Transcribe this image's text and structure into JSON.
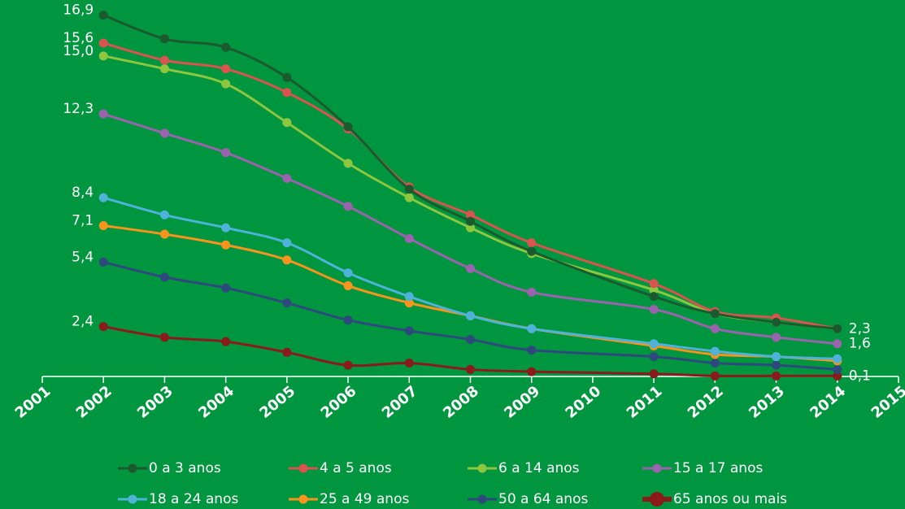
{
  "chart_data": {
    "type": "line",
    "xlim": [
      2001,
      2015
    ],
    "xticks": [
      2001,
      2002,
      2003,
      2004,
      2005,
      2006,
      2007,
      2008,
      2009,
      2010,
      2011,
      2012,
      2013,
      2014,
      2015
    ],
    "ylim": [
      0,
      17
    ],
    "x": [
      2002,
      2003,
      2004,
      2005,
      2006,
      2007,
      2008,
      2009,
      2011,
      2012,
      2013,
      2014
    ],
    "series": [
      {
        "name": "0 a 3 anos",
        "color": "#1b5a2f",
        "values": [
          16.9,
          15.8,
          15.4,
          14.0,
          11.7,
          8.8,
          7.3,
          5.9,
          3.8,
          3.0,
          2.6,
          2.3
        ],
        "value_labels": [
          "16,9",
          null,
          null,
          null,
          null,
          null,
          null,
          null,
          null,
          null,
          null,
          "2,3"
        ]
      },
      {
        "name": "4 a 5 anos",
        "color": "#d9534f",
        "values": [
          15.6,
          14.8,
          14.4,
          13.3,
          11.6,
          8.9,
          7.6,
          6.3,
          4.4,
          3.1,
          2.8,
          2.3
        ],
        "value_labels": [
          "15,6",
          null,
          null,
          null,
          null,
          null,
          null,
          null,
          null,
          null,
          null,
          null
        ]
      },
      {
        "name": "6 a 14 anos",
        "color": "#8dc63f",
        "values": [
          15.0,
          14.4,
          13.7,
          11.9,
          10.0,
          8.4,
          7.0,
          5.8,
          4.1,
          3.0,
          2.6,
          2.3
        ],
        "value_labels": [
          "15,0",
          null,
          null,
          null,
          null,
          null,
          null,
          null,
          null,
          null,
          null,
          null
        ]
      },
      {
        "name": "15 a 17 anos",
        "color": "#9b63ad",
        "values": [
          12.3,
          11.4,
          10.5,
          9.3,
          8.0,
          6.5,
          5.1,
          4.0,
          3.2,
          2.3,
          1.9,
          1.6
        ],
        "value_labels": [
          "12,3",
          null,
          null,
          null,
          null,
          null,
          null,
          null,
          null,
          null,
          null,
          "1,6"
        ]
      },
      {
        "name": "18 a 24 anos",
        "color": "#4fb3d9",
        "values": [
          8.4,
          7.6,
          7.0,
          6.3,
          4.9,
          3.8,
          2.9,
          2.3,
          1.6,
          1.25,
          1.0,
          0.9
        ],
        "value_labels": [
          "8,4",
          null,
          null,
          null,
          null,
          null,
          null,
          null,
          null,
          null,
          null,
          null
        ]
      },
      {
        "name": "25 a 49 anos",
        "color": "#f7941d",
        "values": [
          7.1,
          6.7,
          6.2,
          5.5,
          4.3,
          3.5,
          2.9,
          2.3,
          1.5,
          1.1,
          1.0,
          0.8
        ],
        "value_labels": [
          "7,1",
          null,
          null,
          null,
          null,
          null,
          null,
          null,
          null,
          null,
          null,
          null
        ]
      },
      {
        "name": "50 a 64 anos",
        "color": "#2e4a7d",
        "values": [
          5.4,
          4.7,
          4.2,
          3.5,
          2.7,
          2.2,
          1.8,
          1.3,
          1.0,
          0.7,
          0.6,
          0.4
        ],
        "value_labels": [
          "5,4",
          null,
          null,
          null,
          null,
          null,
          null,
          null,
          null,
          null,
          null,
          null
        ]
      },
      {
        "name": "65 anos ou mais",
        "color": "#8b1a1a",
        "values": [
          2.4,
          1.9,
          1.7,
          1.2,
          0.6,
          0.7,
          0.4,
          0.3,
          0.2,
          0.1,
          0.1,
          0.1
        ],
        "value_labels": [
          "2,4",
          null,
          null,
          null,
          null,
          null,
          null,
          null,
          null,
          null,
          null,
          "0,1"
        ]
      }
    ]
  }
}
